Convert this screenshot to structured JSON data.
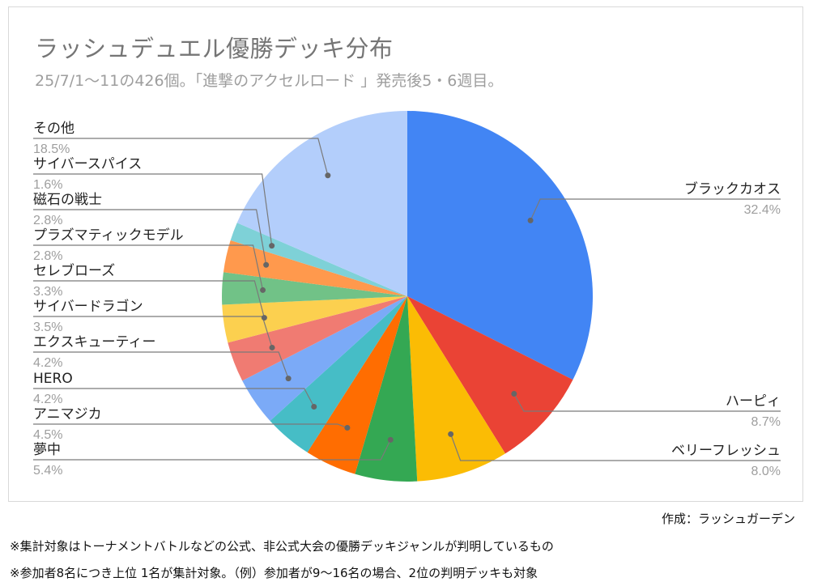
{
  "title": "ラッシュデュエル優勝デッキ分布",
  "subtitle": "25/7/1〜11の426個。「進撃のアクセルロード 」発売後5・6週目。",
  "credit": "作成：ラッシュガーデン",
  "notes": [
    "※集計対象はトーナメントバトルなどの公式、非公式大会の優勝デッキジャンルが判明しているもの",
    "※参加者8名につき上位 1名が集計対象。（例）参加者が9〜16名の場合、2位の判明デッキも対象"
  ],
  "chart_data": {
    "type": "pie",
    "title": "ラッシュデュエル優勝デッキ分布",
    "subtitle": "25/7/1〜11の426個。「進撃のアクセルロード 」発売後5・6週目。",
    "legend": "none",
    "slices": [
      {
        "label": "ブラックカオス",
        "value": 32.4,
        "display": "32.4%",
        "color": "#4285f4"
      },
      {
        "label": "ハーピィ",
        "value": 8.7,
        "display": "8.7%",
        "color": "#ea4335"
      },
      {
        "label": "ベリーフレッシュ",
        "value": 8.0,
        "display": "8.0%",
        "color": "#fbbc04"
      },
      {
        "label": "夢中",
        "value": 5.4,
        "display": "5.4%",
        "color": "#34a853"
      },
      {
        "label": "アニマジカ",
        "value": 4.5,
        "display": "4.5%",
        "color": "#ff6d01"
      },
      {
        "label": "HERO",
        "value": 4.2,
        "display": "4.2%",
        "color": "#46bdc6"
      },
      {
        "label": "エクスキューティー",
        "value": 4.2,
        "display": "4.2%",
        "color": "#7baaf7"
      },
      {
        "label": "サイバードラゴン",
        "value": 3.5,
        "display": "3.5%",
        "color": "#f07b72"
      },
      {
        "label": "セレブローズ",
        "value": 3.3,
        "display": "3.3%",
        "color": "#fcd04f"
      },
      {
        "label": "プラズマティックモデル",
        "value": 2.8,
        "display": "2.8%",
        "color": "#71c287"
      },
      {
        "label": "磁石の戦士",
        "value": 2.8,
        "display": "2.8%",
        "color": "#ff994d"
      },
      {
        "label": "サイバースパイス",
        "value": 1.6,
        "display": "1.6%",
        "color": "#7ed1d7"
      },
      {
        "label": "その他",
        "value": 18.5,
        "display": "18.5%",
        "color": "#b3cefb"
      }
    ]
  }
}
